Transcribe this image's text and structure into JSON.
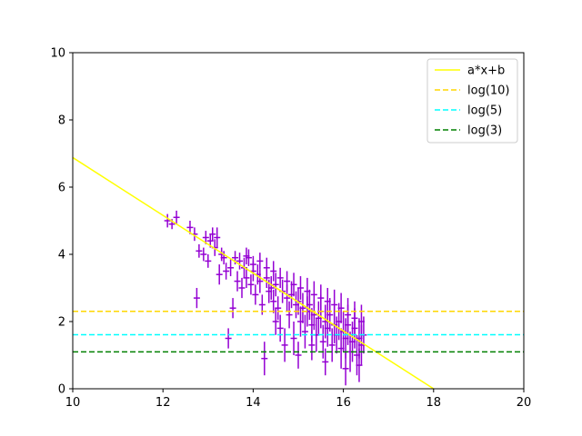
{
  "chart_data": {
    "type": "scatter",
    "title": "",
    "xlabel": "",
    "ylabel": "",
    "xlim": [
      10,
      20
    ],
    "ylim": [
      0,
      10
    ],
    "xticks": [
      10,
      12,
      14,
      16,
      18,
      20
    ],
    "yticks": [
      0,
      2,
      4,
      6,
      8,
      10
    ],
    "grid": false,
    "legend_position": "top-right",
    "fit_line": {
      "name": "a*x+b",
      "color": "#ffff00",
      "points": [
        [
          10,
          6.88
        ],
        [
          18,
          0
        ]
      ]
    },
    "hlines": [
      {
        "name": "log(10)",
        "y": 2.303,
        "color": "#ffd700"
      },
      {
        "name": "log(5)",
        "y": 1.609,
        "color": "#00ffff"
      },
      {
        "name": "log(3)",
        "y": 1.099,
        "color": "#008000"
      }
    ],
    "series": [
      {
        "marker": "errorbar",
        "color": "#9400d3",
        "points": [
          [
            12.1,
            5.0,
            0.2
          ],
          [
            12.2,
            4.9,
            0.15
          ],
          [
            12.3,
            5.1,
            0.2
          ],
          [
            12.6,
            4.8,
            0.2
          ],
          [
            12.7,
            4.6,
            0.2
          ],
          [
            12.75,
            2.7,
            0.3
          ],
          [
            12.8,
            4.1,
            0.2
          ],
          [
            12.9,
            4.0,
            0.2
          ],
          [
            12.95,
            4.5,
            0.2
          ],
          [
            13.0,
            3.8,
            0.2
          ],
          [
            13.05,
            4.4,
            0.2
          ],
          [
            13.1,
            4.6,
            0.2
          ],
          [
            13.15,
            4.2,
            0.25
          ],
          [
            13.2,
            4.5,
            0.3
          ],
          [
            13.25,
            3.4,
            0.3
          ],
          [
            13.3,
            4.0,
            0.2
          ],
          [
            13.35,
            3.9,
            0.2
          ],
          [
            13.4,
            3.5,
            0.25
          ],
          [
            13.45,
            1.5,
            0.3
          ],
          [
            13.5,
            3.6,
            0.25
          ],
          [
            13.55,
            2.4,
            0.3
          ],
          [
            13.6,
            3.9,
            0.2
          ],
          [
            13.65,
            3.2,
            0.3
          ],
          [
            13.7,
            3.8,
            0.25
          ],
          [
            13.75,
            3.0,
            0.3
          ],
          [
            13.8,
            3.6,
            0.3
          ],
          [
            13.85,
            3.3,
            0.3
          ],
          [
            13.9,
            3.9,
            0.25
          ],
          [
            13.95,
            3.1,
            0.3
          ],
          [
            14.0,
            3.5,
            0.3
          ],
          [
            14.05,
            2.8,
            0.3
          ],
          [
            14.1,
            3.4,
            0.3
          ],
          [
            14.15,
            3.2,
            0.35
          ],
          [
            14.2,
            2.5,
            0.3
          ],
          [
            14.25,
            0.9,
            0.5
          ],
          [
            14.3,
            3.3,
            0.3
          ],
          [
            14.35,
            2.9,
            0.35
          ],
          [
            14.4,
            3.0,
            0.35
          ],
          [
            14.45,
            2.6,
            0.35
          ],
          [
            14.5,
            3.1,
            0.35
          ],
          [
            14.55,
            2.4,
            0.35
          ],
          [
            14.6,
            1.8,
            0.4
          ],
          [
            14.65,
            2.9,
            0.35
          ],
          [
            14.7,
            1.3,
            0.5
          ],
          [
            14.75,
            2.7,
            0.4
          ],
          [
            14.8,
            2.2,
            0.4
          ],
          [
            14.85,
            2.8,
            0.4
          ],
          [
            14.9,
            1.5,
            0.5
          ],
          [
            14.95,
            2.5,
            0.4
          ],
          [
            15.0,
            2.6,
            0.4
          ],
          [
            15.05,
            2.0,
            0.45
          ],
          [
            15.1,
            2.4,
            0.45
          ],
          [
            15.15,
            1.7,
            0.5
          ],
          [
            15.2,
            2.3,
            0.45
          ],
          [
            15.25,
            2.5,
            0.45
          ],
          [
            15.3,
            1.9,
            0.5
          ],
          [
            15.35,
            2.2,
            0.45
          ],
          [
            15.4,
            1.6,
            0.5
          ],
          [
            15.45,
            2.1,
            0.5
          ],
          [
            15.5,
            2.3,
            0.5
          ],
          [
            15.55,
            1.4,
            0.5
          ],
          [
            15.6,
            2.0,
            0.5
          ],
          [
            15.65,
            1.8,
            0.55
          ],
          [
            15.7,
            2.2,
            0.5
          ],
          [
            15.75,
            1.3,
            0.5
          ],
          [
            15.8,
            1.9,
            0.55
          ],
          [
            15.85,
            1.6,
            0.55
          ],
          [
            15.9,
            2.0,
            0.55
          ],
          [
            15.95,
            1.2,
            0.6
          ],
          [
            16.0,
            1.7,
            0.6
          ],
          [
            16.05,
            1.5,
            0.6
          ],
          [
            16.1,
            1.9,
            0.6
          ],
          [
            16.15,
            1.1,
            0.6
          ],
          [
            16.2,
            1.4,
            0.6
          ],
          [
            16.25,
            1.8,
            0.6
          ],
          [
            16.3,
            1.0,
            0.6
          ],
          [
            16.35,
            1.5,
            0.6
          ],
          [
            16.4,
            1.3,
            0.6
          ],
          [
            16.45,
            1.6,
            0.55
          ],
          [
            14.0,
            3.7,
            0.25
          ],
          [
            14.3,
            3.6,
            0.3
          ],
          [
            14.6,
            3.3,
            0.3
          ],
          [
            14.9,
            3.1,
            0.35
          ],
          [
            15.2,
            2.9,
            0.4
          ],
          [
            15.5,
            2.7,
            0.4
          ],
          [
            15.8,
            2.5,
            0.45
          ],
          [
            16.1,
            2.2,
            0.5
          ],
          [
            16.4,
            2.0,
            0.5
          ],
          [
            14.15,
            3.8,
            0.25
          ],
          [
            14.45,
            3.5,
            0.3
          ],
          [
            14.75,
            3.2,
            0.3
          ],
          [
            15.05,
            3.0,
            0.35
          ],
          [
            15.35,
            2.8,
            0.4
          ],
          [
            15.65,
            2.6,
            0.4
          ],
          [
            15.95,
            2.4,
            0.45
          ],
          [
            16.25,
            2.1,
            0.5
          ],
          [
            13.85,
            3.95,
            0.25
          ],
          [
            15.0,
            1.0,
            0.4
          ],
          [
            15.6,
            0.8,
            0.4
          ],
          [
            16.05,
            0.6,
            0.5
          ],
          [
            16.35,
            0.7,
            0.5
          ],
          [
            15.3,
            1.3,
            0.45
          ],
          [
            14.5,
            2.0,
            0.4
          ]
        ]
      }
    ]
  }
}
